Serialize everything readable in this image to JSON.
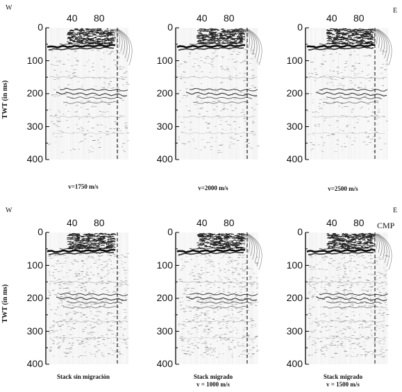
{
  "labels": {
    "west": "W",
    "east": "E",
    "ylabel": "TWT (in ms)",
    "cmp": "CMP"
  },
  "x_ticks": [
    "40",
    "80"
  ],
  "y_ticks": [
    "0",
    "100",
    "200",
    "300",
    "400"
  ],
  "panels": [
    {
      "caption_line1": "v=1750 m/s",
      "caption_line2": ""
    },
    {
      "caption_line1": "v=2000 m/s",
      "caption_line2": ""
    },
    {
      "caption_line1": "v=2500 m/s",
      "caption_line2": ""
    },
    {
      "caption_line1": "Stack sin migración",
      "caption_line2": ""
    },
    {
      "caption_line1": "Stack migrado",
      "caption_line2": "v = 1000 m/s"
    },
    {
      "caption_line1": "Stack migrado",
      "caption_line2": "v = 1500 m/s"
    }
  ],
  "colors": {
    "trace": "#2a2a2a",
    "reflector": "#000000",
    "background": "#ffffff"
  }
}
